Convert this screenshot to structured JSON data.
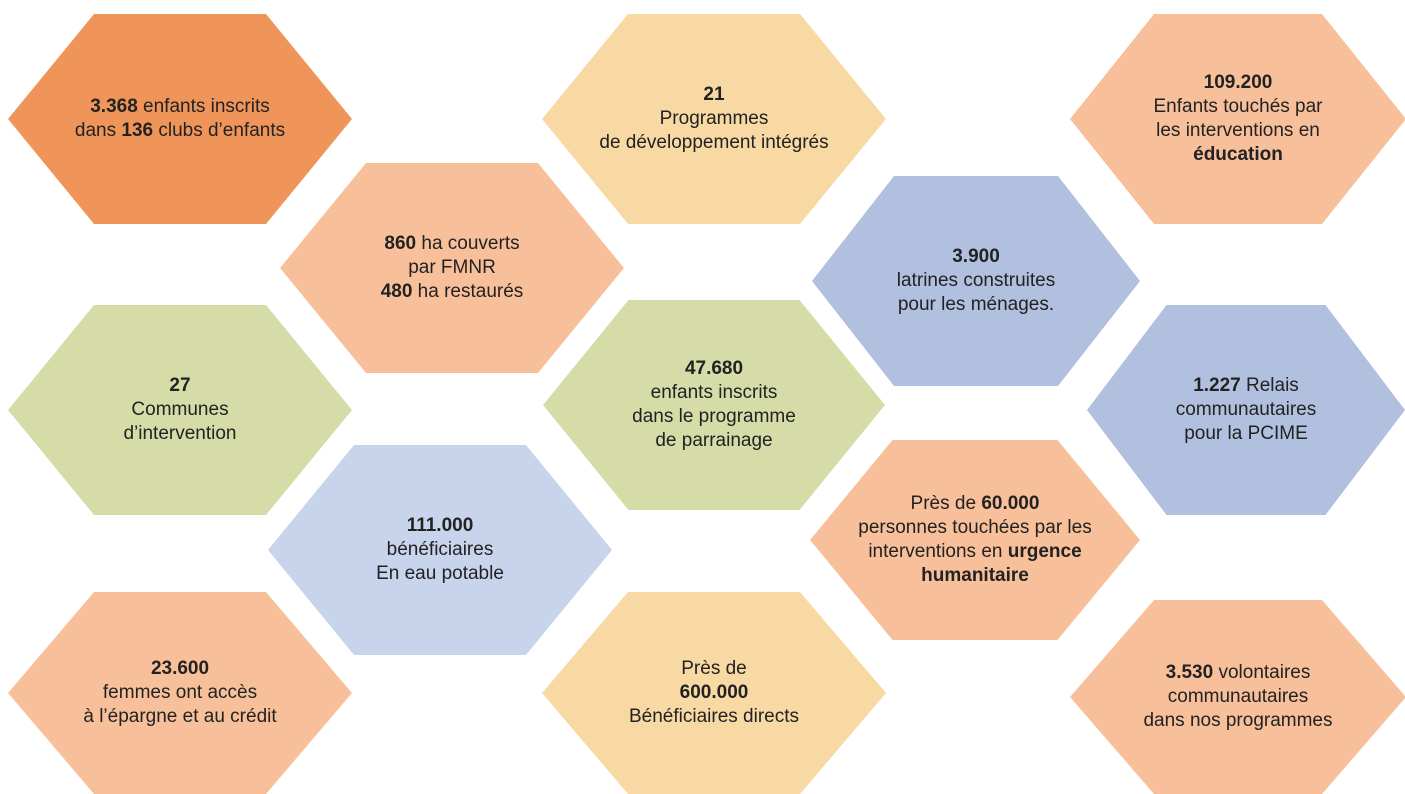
{
  "nodes": [
    {
      "color": "#f0955a",
      "lines": [
        [
          {
            "text": "3.368",
            "bold": true
          },
          {
            "text": " enfants inscrits"
          }
        ],
        [
          {
            "text": "dans "
          },
          {
            "text": "136",
            "bold": true
          },
          {
            "text": " clubs d’enfants"
          }
        ]
      ]
    },
    {
      "color": "#f9d9a3",
      "lines": [
        [
          {
            "text": "21",
            "bold": true
          }
        ],
        [
          {
            "text": "Programmes"
          }
        ],
        [
          {
            "text": "de développement intégrés"
          }
        ]
      ]
    },
    {
      "color": "#f8c09a",
      "lines": [
        [
          {
            "text": "109.200",
            "bold": true
          }
        ],
        [
          {
            "text": "Enfants touchés par"
          }
        ],
        [
          {
            "text": "les interventions en"
          }
        ],
        [
          {
            "text": "éducation",
            "bold": true
          }
        ]
      ]
    },
    {
      "color": "#f8c09a",
      "lines": [
        [
          {
            "text": "860",
            "bold": true
          },
          {
            "text": " ha couverts"
          }
        ],
        [
          {
            "text": "par FMNR"
          }
        ],
        [
          {
            "text": "480",
            "bold": true
          },
          {
            "text": " ha restaurés"
          }
        ]
      ]
    },
    {
      "color": "#b0c0de",
      "lines": [
        [
          {
            "text": "3.900",
            "bold": true
          }
        ],
        [
          {
            "text": "latrines construites"
          }
        ],
        [
          {
            "text": "pour les ménages."
          }
        ]
      ]
    },
    {
      "color": "#d6dca8",
      "lines": [
        [
          {
            "text": "27",
            "bold": true
          }
        ],
        [
          {
            "text": "Communes"
          }
        ],
        [
          {
            "text": "d’intervention"
          }
        ]
      ]
    },
    {
      "color": "#d6dca8",
      "lines": [
        [
          {
            "text": "47.680",
            "bold": true
          }
        ],
        [
          {
            "text": "enfants inscrits"
          }
        ],
        [
          {
            "text": "dans le programme"
          }
        ],
        [
          {
            "text": "de parrainage"
          }
        ]
      ]
    },
    {
      "color": "#b0c0de",
      "lines": [
        [
          {
            "text": "1.227",
            "bold": true
          },
          {
            "text": " Relais"
          }
        ],
        [
          {
            "text": "communautaires"
          }
        ],
        [
          {
            "text": "pour la PCIME"
          }
        ]
      ]
    },
    {
      "color": "#c8d3ec",
      "lines": [
        [
          {
            "text": "111.000",
            "bold": true
          }
        ],
        [
          {
            "text": "bénéficiaires"
          }
        ],
        [
          {
            "text": "En eau potable"
          }
        ]
      ]
    },
    {
      "color": "#f8c09a",
      "lines": [
        [
          {
            "text": "Près de "
          },
          {
            "text": "60.000",
            "bold": true
          }
        ],
        [
          {
            "text": "personnes touchées par les"
          }
        ],
        [
          {
            "text": "interventions en "
          },
          {
            "text": "urgence",
            "bold": true
          }
        ],
        [
          {
            "text": "humanitaire",
            "bold": true
          }
        ]
      ]
    },
    {
      "color": "#f8c09a",
      "lines": [
        [
          {
            "text": "23.600",
            "bold": true
          }
        ],
        [
          {
            "text": "femmes ont accès"
          }
        ],
        [
          {
            "text": "à l’épargne et au crédit"
          }
        ]
      ]
    },
    {
      "color": "#f9d9a3",
      "lines": [
        [
          {
            "text": "Près de"
          }
        ],
        [
          {
            "text": "600.000",
            "bold": true
          }
        ],
        [
          {
            "text": "Bénéficiaires directs"
          }
        ]
      ]
    },
    {
      "color": "#f8c09a",
      "lines": [
        [
          {
            "text": "3.530",
            "bold": true
          },
          {
            "text": " volontaires"
          }
        ],
        [
          {
            "text": "communautaires"
          }
        ],
        [
          {
            "text": "dans nos programmes"
          }
        ]
      ]
    }
  ]
}
